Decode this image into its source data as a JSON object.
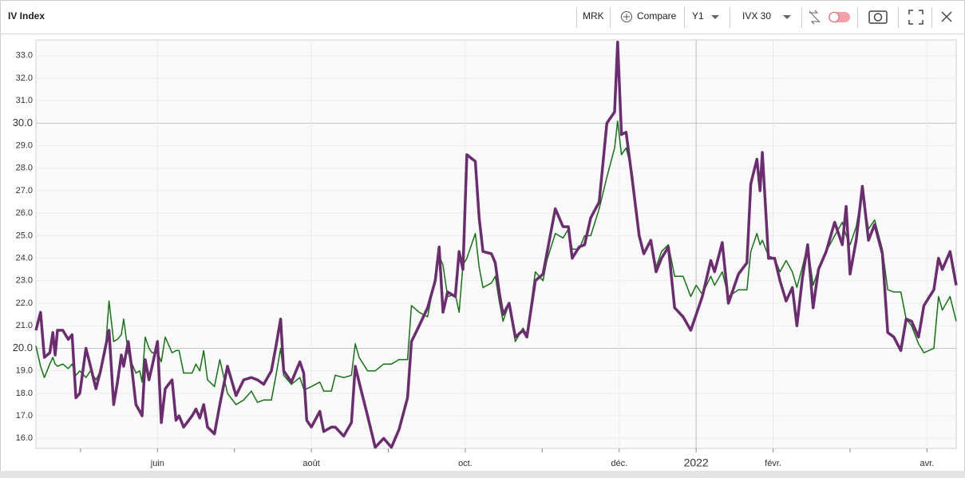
{
  "toolbar": {
    "title": "IV Index",
    "symbol": "MRK",
    "compare": "Compare",
    "period": "Y1",
    "measure": "IVX 30"
  },
  "chart_data": {
    "type": "line",
    "x": [
      4.42,
      4.48,
      4.53,
      4.6,
      4.64,
      4.67,
      4.7,
      4.77,
      4.84,
      4.89,
      4.94,
      4.99,
      5.07,
      5.13,
      5.2,
      5.26,
      5.32,
      5.37,
      5.43,
      5.48,
      5.53,
      5.56,
      5.62,
      5.67,
      5.72,
      5.77,
      5.8,
      5.84,
      5.89,
      5.93,
      6.0,
      6.05,
      6.1,
      6.19,
      6.24,
      6.28,
      6.34,
      6.45,
      6.5,
      6.55,
      6.6,
      6.65,
      6.74,
      6.81,
      6.91,
      7.02,
      7.12,
      7.22,
      7.3,
      7.38,
      7.48,
      7.54,
      7.6,
      7.64,
      7.74,
      7.85,
      7.9,
      7.94,
      8.0,
      8.11,
      8.16,
      8.26,
      8.31,
      8.42,
      8.52,
      8.57,
      8.62,
      8.73,
      8.83,
      8.94,
      9.04,
      9.14,
      9.25,
      9.3,
      9.4,
      9.51,
      9.61,
      9.66,
      9.71,
      9.77,
      9.87,
      9.92,
      9.97,
      10.02,
      10.13,
      10.18,
      10.23,
      10.34,
      10.39,
      10.44,
      10.49,
      10.57,
      10.65,
      10.75,
      10.8,
      10.91,
      11.01,
      11.06,
      11.17,
      11.27,
      11.34,
      11.39,
      11.48,
      11.55,
      11.63,
      11.74,
      11.84,
      11.94,
      11.98,
      12.03,
      12.09,
      12.17,
      12.26,
      12.32,
      12.41,
      12.48,
      12.55,
      12.64,
      12.72,
      12.83,
      12.93,
      13.0,
      13.08,
      13.19,
      13.24,
      13.34,
      13.42,
      13.55,
      13.66,
      13.71,
      13.79,
      13.83,
      13.86,
      13.94,
      14.02,
      14.09,
      14.17,
      14.25,
      14.31,
      14.38,
      14.45,
      14.52,
      14.59,
      14.69,
      14.8,
      14.9,
      14.95,
      15.0,
      15.08,
      15.16,
      15.24,
      15.32,
      15.42,
      15.49,
      15.57,
      15.66,
      15.73,
      15.8,
      15.89,
      15.96,
      16.09,
      16.15,
      16.2,
      16.3,
      16.38
    ],
    "series": [
      {
        "color": "#6b2d6f",
        "values": [
          20.8,
          21.6,
          19.6,
          19.8,
          20.7,
          19.7,
          20.8,
          20.8,
          20.4,
          20.6,
          17.8,
          18.0,
          20.0,
          19.2,
          18.2,
          19.0,
          20.0,
          20.8,
          17.5,
          18.5,
          19.7,
          19.2,
          20.3,
          19.0,
          17.5,
          17.2,
          17.0,
          19.5,
          18.6,
          19.2,
          20.3,
          16.7,
          18.2,
          18.6,
          16.8,
          17.0,
          16.5,
          17.0,
          17.3,
          16.9,
          17.5,
          16.5,
          16.2,
          17.5,
          19.2,
          17.9,
          18.6,
          18.7,
          18.6,
          18.4,
          19.0,
          20.1,
          21.3,
          19.0,
          18.5,
          19.4,
          18.9,
          16.8,
          16.5,
          17.2,
          16.3,
          16.5,
          16.5,
          16.1,
          16.7,
          19.2,
          18.5,
          17.0,
          15.6,
          16.0,
          15.6,
          16.4,
          17.8,
          20.3,
          21.0,
          21.8,
          23.0,
          24.5,
          21.6,
          22.5,
          22.3,
          24.3,
          23.5,
          28.6,
          28.3,
          25.8,
          24.3,
          24.2,
          23.8,
          22.5,
          21.5,
          22.0,
          20.5,
          20.8,
          20.5,
          23.0,
          23.3,
          24.2,
          26.2,
          25.4,
          25.4,
          24.0,
          24.5,
          24.6,
          25.8,
          26.5,
          30.0,
          30.5,
          33.6,
          29.5,
          29.6,
          27.5,
          25.0,
          24.2,
          24.8,
          23.4,
          24.0,
          24.5,
          21.8,
          21.4,
          20.8,
          21.5,
          22.3,
          23.9,
          23.4,
          24.7,
          22.0,
          23.3,
          23.8,
          27.3,
          28.4,
          27.0,
          28.7,
          24.0,
          24.0,
          23.0,
          22.1,
          22.7,
          21.0,
          23.1,
          24.6,
          21.8,
          23.5,
          24.3,
          25.6,
          24.6,
          26.3,
          23.3,
          24.8,
          27.2,
          24.8,
          25.5,
          24.2,
          20.7,
          20.5,
          19.9,
          21.3,
          21.2,
          20.5,
          21.9,
          22.6,
          24.0,
          23.5,
          24.3,
          22.8
        ]
      },
      {
        "color": "#137313",
        "values": [
          20.1,
          19.2,
          18.7,
          19.3,
          19.6,
          19.3,
          19.2,
          19.3,
          19.1,
          19.3,
          18.8,
          19.0,
          18.7,
          19.0,
          18.6,
          19.0,
          19.8,
          22.1,
          20.3,
          20.4,
          20.6,
          21.3,
          19.8,
          19.3,
          18.9,
          19.0,
          18.5,
          20.5,
          20.0,
          19.8,
          19.8,
          19.4,
          20.5,
          19.8,
          19.9,
          19.9,
          18.9,
          18.9,
          19.3,
          19.0,
          19.9,
          18.6,
          18.3,
          19.5,
          18.0,
          17.5,
          17.7,
          18.1,
          17.6,
          17.7,
          17.7,
          18.8,
          20.0,
          18.8,
          18.4,
          18.7,
          18.2,
          18.2,
          18.3,
          18.5,
          18.1,
          18.1,
          18.8,
          18.7,
          18.8,
          20.2,
          19.6,
          19.0,
          19.0,
          19.3,
          19.3,
          19.5,
          19.5,
          21.9,
          21.6,
          21.4,
          23.2,
          24.1,
          23.7,
          22.3,
          22.4,
          21.6,
          23.7,
          24.0,
          25.1,
          23.6,
          22.7,
          22.9,
          23.2,
          22.1,
          21.2,
          22.0,
          20.3,
          20.9,
          20.6,
          23.4,
          23.0,
          23.9,
          25.1,
          24.9,
          25.3,
          24.4,
          24.4,
          25.0,
          25.0,
          26.2,
          27.6,
          28.9,
          30.1,
          28.6,
          28.9,
          27.8,
          24.9,
          24.3,
          24.7,
          23.6,
          24.3,
          24.6,
          23.2,
          23.2,
          22.3,
          22.8,
          22.4,
          23.2,
          22.8,
          23.4,
          22.3,
          22.6,
          22.6,
          24.3,
          25.1,
          24.6,
          24.8,
          24.1,
          24.0,
          23.4,
          23.9,
          23.4,
          22.7,
          23.6,
          24.6,
          22.8,
          23.5,
          24.3,
          25.0,
          25.6,
          25.0,
          24.6,
          25.4,
          27.0,
          25.3,
          25.7,
          24.4,
          22.6,
          22.5,
          22.5,
          21.3,
          21.0,
          20.2,
          19.8,
          20.0,
          22.3,
          21.7,
          22.3,
          21.2
        ]
      }
    ],
    "xlim": [
      4.42,
      16.38
    ],
    "xticks": [
      {
        "value": 6,
        "label": "juin"
      },
      {
        "value": 8,
        "label": "août"
      },
      {
        "value": 10,
        "label": "oct."
      },
      {
        "value": 12,
        "label": "déc."
      },
      {
        "value": 13,
        "label": "2022"
      },
      {
        "value": 14,
        "label": "févr."
      },
      {
        "value": 16,
        "label": "avr."
      }
    ],
    "xminorticks": [
      5,
      7,
      9,
      11,
      15
    ],
    "ylim": [
      15.55,
      33.7
    ],
    "yticks": [
      {
        "value": 16,
        "label": "16.0"
      },
      {
        "value": 17,
        "label": "17.0"
      },
      {
        "value": 18,
        "label": "18.0"
      },
      {
        "value": 19,
        "label": "19.0"
      },
      {
        "value": 20,
        "label": "20.0"
      },
      {
        "value": 21,
        "label": "21.0"
      },
      {
        "value": 22,
        "label": "22.0"
      },
      {
        "value": 23,
        "label": "23.0"
      },
      {
        "value": 24,
        "label": "24.0"
      },
      {
        "value": 25,
        "label": "25.0"
      },
      {
        "value": 26,
        "label": "26.0"
      },
      {
        "value": 27,
        "label": "27.0"
      },
      {
        "value": 28,
        "label": "28.0"
      },
      {
        "value": 29,
        "label": "29.0"
      },
      {
        "value": 30,
        "label": "30.0"
      },
      {
        "value": 31,
        "label": "31.0"
      },
      {
        "value": 32,
        "label": "32.0"
      },
      {
        "value": 33,
        "label": "33.0"
      }
    ],
    "grid": true
  }
}
